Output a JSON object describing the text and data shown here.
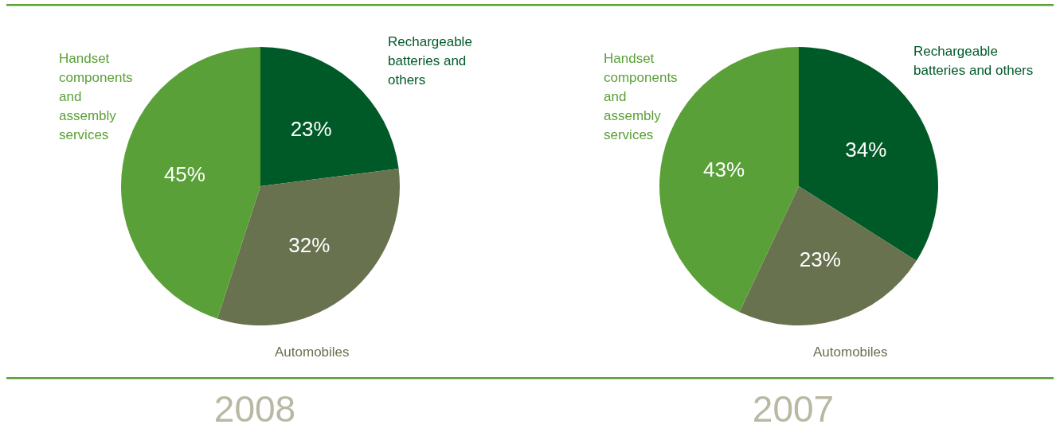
{
  "chart_data": [
    {
      "type": "pie",
      "title": "2008",
      "categories": [
        "Rechargeable batteries and others",
        "Automobiles",
        "Handset components and assembly services"
      ],
      "values": [
        23,
        32,
        45
      ],
      "colors": [
        "#005a28",
        "#69724f",
        "#5aa038"
      ],
      "value_labels": [
        "23%",
        "32%",
        "45%"
      ]
    },
    {
      "type": "pie",
      "title": "2007",
      "categories": [
        "Rechargeable batteries and others",
        "Automobiles",
        "Handset components and assembly services"
      ],
      "values": [
        34,
        23,
        43
      ],
      "colors": [
        "#005a28",
        "#69724f",
        "#5aa038"
      ],
      "value_labels": [
        "34%",
        "23%",
        "43%"
      ]
    }
  ]
}
